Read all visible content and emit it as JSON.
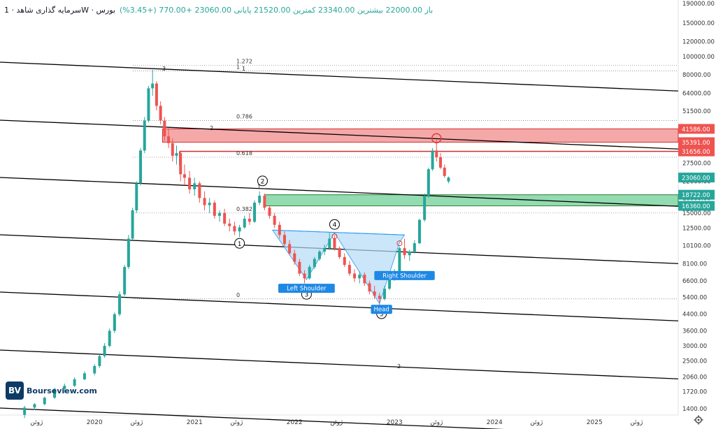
{
  "header": {
    "title": "سرمایه گذاری شاهد · 1W · بورس",
    "ohlc": "باز 22000.00 بیشترین 23340.00 کمترین 21520.00 پایانی 23060.00 +770.00 (+3.45%)"
  },
  "colors": {
    "up": "#26a69a",
    "down": "#ef5350",
    "zone_red": "#f28b8b",
    "zone_green": "#6fcf97",
    "pattern": "#b3dcf5"
  },
  "logo": {
    "mark": "BV",
    "text": "Bourseview.com"
  },
  "chart_data": {
    "type": "candlestick",
    "scale": "log",
    "y_ticks": [
      190000,
      150000,
      120000,
      100000,
      80000,
      64000,
      51500,
      41000,
      33000,
      27500,
      22000,
      18000,
      15000,
      12500,
      10100,
      8100,
      6600,
      5400,
      4400,
      3600,
      3000,
      2500,
      2060,
      1720,
      1400
    ],
    "x_ticks": [
      {
        "label": "ژوئن",
        "t": 2019.42
      },
      {
        "label": "2020",
        "t": 2020.0
      },
      {
        "label": "ژوئن",
        "t": 2020.42
      },
      {
        "label": "2021",
        "t": 2021.0
      },
      {
        "label": "ژوئن",
        "t": 2021.42
      },
      {
        "label": "2022",
        "t": 2022.0
      },
      {
        "label": "ژوئن",
        "t": 2022.42
      },
      {
        "label": "2023",
        "t": 2023.0
      },
      {
        "label": "ژوئن",
        "t": 2023.42
      },
      {
        "label": "2024",
        "t": 2024.0
      },
      {
        "label": "ژوئن",
        "t": 2024.42
      },
      {
        "label": "2025",
        "t": 2025.0
      },
      {
        "label": "ژوئن",
        "t": 2025.42
      }
    ],
    "price_labels": [
      {
        "value": 41586,
        "text": "41586.00",
        "color": "#ef5350"
      },
      {
        "value": 35391,
        "text": "35391.00",
        "color": "#ef5350"
      },
      {
        "value": 31656,
        "text": "31656.00",
        "color": "#ef5350"
      },
      {
        "value": 23060,
        "text": "23060.00",
        "color": "#26a69a"
      },
      {
        "value": 18722,
        "text": "18722.00",
        "color": "#26a69a"
      },
      {
        "value": 16360,
        "text": "16360.00",
        "color": "#26a69a"
      }
    ],
    "zones": [
      {
        "kind": "resistance",
        "from": 35391,
        "to": 41586,
        "t_start": 2020.68
      },
      {
        "kind": "resistance-line",
        "value": 31656,
        "t_start": 2020.85
      },
      {
        "kind": "support",
        "from": 16360,
        "to": 18722,
        "t_start": 2021.7
      }
    ],
    "fib_levels": [
      {
        "label": "1.272",
        "value": 90000
      },
      {
        "label": "1",
        "value": 84000
      },
      {
        "label": "0.786",
        "value": 46000
      },
      {
        "label": "0.618",
        "value": 29500
      },
      {
        "label": "0.382",
        "value": 15000
      },
      {
        "label": "0",
        "value": 5300
      }
    ],
    "channel_labels": [
      "3",
      "1",
      "2",
      "1",
      "2"
    ],
    "waves": [
      {
        "label": "1",
        "t": 2021.45,
        "v": 11500
      },
      {
        "label": "2",
        "t": 2021.68,
        "v": 20000
      },
      {
        "label": "3",
        "t": 2022.12,
        "v": 6200
      },
      {
        "label": "4",
        "t": 2022.4,
        "v": 11800
      },
      {
        "label": "5",
        "t": 2022.87,
        "v": 4900
      }
    ],
    "pattern_labels": {
      "left": "Left Shoulder",
      "head": "Head",
      "right": "Right Shoulder"
    },
    "candles": [
      [
        2019.3,
        1300,
        1450,
        1250,
        1420
      ],
      [
        2019.4,
        1420,
        1500,
        1380,
        1480
      ],
      [
        2019.5,
        1480,
        1620,
        1460,
        1600
      ],
      [
        2019.6,
        1600,
        1800,
        1580,
        1780
      ],
      [
        2019.7,
        1780,
        1900,
        1700,
        1850
      ],
      [
        2019.8,
        1850,
        2050,
        1820,
        2000
      ],
      [
        2019.9,
        2000,
        2200,
        1980,
        2150
      ],
      [
        2020.0,
        2150,
        2400,
        2100,
        2350
      ],
      [
        2020.05,
        2350,
        2700,
        2300,
        2650
      ],
      [
        2020.1,
        2650,
        3100,
        2600,
        3000
      ],
      [
        2020.15,
        3000,
        3700,
        2950,
        3600
      ],
      [
        2020.2,
        3600,
        4500,
        3500,
        4400
      ],
      [
        2020.25,
        4400,
        5800,
        4300,
        5600
      ],
      [
        2020.3,
        5600,
        8000,
        5500,
        7800
      ],
      [
        2020.34,
        7800,
        11500,
        7600,
        11000
      ],
      [
        2020.38,
        11000,
        16000,
        10800,
        15500
      ],
      [
        2020.42,
        15500,
        22000,
        15000,
        21500
      ],
      [
        2020.46,
        21500,
        33000,
        21000,
        32000
      ],
      [
        2020.5,
        32000,
        48000,
        31000,
        46000
      ],
      [
        2020.54,
        46000,
        70000,
        45000,
        68000
      ],
      [
        2020.58,
        68000,
        85000,
        62000,
        72000
      ],
      [
        2020.62,
        72000,
        74000,
        52000,
        55000
      ],
      [
        2020.66,
        55000,
        58000,
        44000,
        46000
      ],
      [
        2020.7,
        46000,
        48000,
        36000,
        38000
      ],
      [
        2020.74,
        38000,
        42000,
        33000,
        35000
      ],
      [
        2020.78,
        35000,
        37000,
        28000,
        30000
      ],
      [
        2020.82,
        30000,
        34000,
        27000,
        31000
      ],
      [
        2020.86,
        31000,
        32000,
        22000,
        24000
      ],
      [
        2020.9,
        24000,
        27000,
        21000,
        23000
      ],
      [
        2020.95,
        23000,
        25000,
        19000,
        20000
      ],
      [
        2021.0,
        20000,
        23000,
        18500,
        21500
      ],
      [
        2021.05,
        21500,
        22000,
        17000,
        18000
      ],
      [
        2021.1,
        18000,
        19500,
        15500,
        16500
      ],
      [
        2021.15,
        16500,
        18000,
        15000,
        17000
      ],
      [
        2021.2,
        17000,
        17500,
        14000,
        14500
      ],
      [
        2021.25,
        14500,
        15500,
        13500,
        15000
      ],
      [
        2021.3,
        15000,
        15800,
        12800,
        13200
      ],
      [
        2021.35,
        13200,
        14000,
        12000,
        12800
      ],
      [
        2021.4,
        12800,
        13500,
        11500,
        12000
      ],
      [
        2021.45,
        12000,
        13000,
        11200,
        12600
      ],
      [
        2021.5,
        12600,
        14500,
        12400,
        14000
      ],
      [
        2021.55,
        14000,
        15000,
        13000,
        13500
      ],
      [
        2021.6,
        13500,
        17500,
        13300,
        17000
      ],
      [
        2021.65,
        17000,
        19500,
        16500,
        18500
      ],
      [
        2021.7,
        18500,
        19000,
        15500,
        16000
      ],
      [
        2021.75,
        16000,
        16500,
        14000,
        14500
      ],
      [
        2021.8,
        14500,
        15000,
        12500,
        13000
      ],
      [
        2021.85,
        13000,
        13500,
        11000,
        11500
      ],
      [
        2021.9,
        11500,
        12000,
        10000,
        10300
      ],
      [
        2021.95,
        10300,
        10800,
        9000,
        9200
      ],
      [
        2022.0,
        9200,
        9600,
        8000,
        8300
      ],
      [
        2022.05,
        8300,
        8600,
        7000,
        7200
      ],
      [
        2022.1,
        7200,
        7500,
        6400,
        6800
      ],
      [
        2022.15,
        6800,
        8000,
        6700,
        7800
      ],
      [
        2022.2,
        7800,
        8800,
        7600,
        8600
      ],
      [
        2022.25,
        8600,
        9600,
        8400,
        9400
      ],
      [
        2022.3,
        9400,
        10200,
        9000,
        9800
      ],
      [
        2022.35,
        9800,
        11800,
        9600,
        11000
      ],
      [
        2022.4,
        11000,
        11500,
        9500,
        9800
      ],
      [
        2022.45,
        9800,
        10000,
        8600,
        8800
      ],
      [
        2022.5,
        8800,
        9200,
        7800,
        8000
      ],
      [
        2022.55,
        8000,
        8400,
        7000,
        7200
      ],
      [
        2022.6,
        7200,
        7600,
        6500,
        6800
      ],
      [
        2022.65,
        6800,
        7400,
        6400,
        7100
      ],
      [
        2022.7,
        7100,
        7300,
        6200,
        6400
      ],
      [
        2022.75,
        6400,
        6600,
        5600,
        5800
      ],
      [
        2022.8,
        5800,
        6200,
        5300,
        5500
      ],
      [
        2022.85,
        5500,
        5700,
        4900,
        5300
      ],
      [
        2022.9,
        5300,
        6200,
        5200,
        6000
      ],
      [
        2022.95,
        6000,
        7000,
        5900,
        6800
      ],
      [
        2023.0,
        6800,
        7600,
        6600,
        7400
      ],
      [
        2023.05,
        7400,
        10000,
        7300,
        9800
      ],
      [
        2023.1,
        9800,
        11000,
        8600,
        9000
      ],
      [
        2023.15,
        9000,
        9600,
        8400,
        9400
      ],
      [
        2023.2,
        9400,
        10800,
        9200,
        10400
      ],
      [
        2023.25,
        10400,
        14000,
        10300,
        13800
      ],
      [
        2023.3,
        13800,
        19000,
        13500,
        18500
      ],
      [
        2023.34,
        18500,
        26000,
        18000,
        25500
      ],
      [
        2023.38,
        25500,
        33000,
        25000,
        32000
      ],
      [
        2023.42,
        32000,
        36500,
        28000,
        29500
      ],
      [
        2023.46,
        29500,
        31000,
        25500,
        26000
      ],
      [
        2023.5,
        26000,
        27000,
        23000,
        23500
      ],
      [
        2023.54,
        22000,
        23340,
        21520,
        23060
      ]
    ]
  }
}
